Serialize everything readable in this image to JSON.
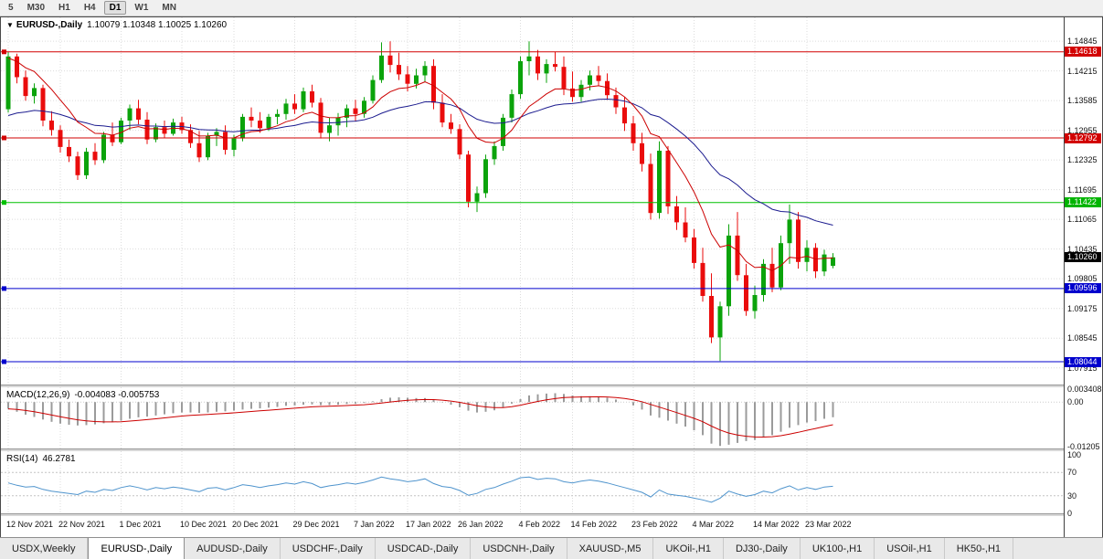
{
  "toolbar": {
    "timeframes": [
      {
        "label": "5",
        "active": false
      },
      {
        "label": "M30",
        "active": false
      },
      {
        "label": "H1",
        "active": false
      },
      {
        "label": "H4",
        "active": false
      },
      {
        "label": "D1",
        "active": true
      },
      {
        "label": "W1",
        "active": false
      },
      {
        "label": "MN",
        "active": false
      }
    ]
  },
  "chart": {
    "marker": "▼",
    "symbol_title": "EURUSD-,Daily",
    "ohlc_text": "1.10079 1.10348 1.10025 1.10260",
    "macd_label": "MACD(12,26,9)",
    "macd_values": "-0.004083 -0.005753",
    "rsi_label": "RSI(14)",
    "rsi_value": "46.2781"
  },
  "tabs": [
    {
      "label": "USDX,Weekly",
      "active": false
    },
    {
      "label": "EURUSD-,Daily",
      "active": true
    },
    {
      "label": "AUDUSD-,Daily",
      "active": false
    },
    {
      "label": "USDCHF-,Daily",
      "active": false
    },
    {
      "label": "USDCAD-,Daily",
      "active": false
    },
    {
      "label": "USDCNH-,Daily",
      "active": false
    },
    {
      "label": "XAUUSD-,M5",
      "active": false
    },
    {
      "label": "UKOil-,H1",
      "active": false
    },
    {
      "label": "DJ30-,Daily",
      "active": false
    },
    {
      "label": "UK100-,H1",
      "active": false
    },
    {
      "label": "USOil-,H1",
      "active": false
    },
    {
      "label": "HK50-,H1",
      "active": false
    }
  ],
  "chart_data": {
    "type": "candlestick",
    "symbol": "EURUSD-",
    "timeframe": "Daily",
    "current_bar": {
      "open": 1.10079,
      "high": 1.10348,
      "low": 1.10025,
      "close": 1.1026
    },
    "price_range": [
      1.0756,
      1.1535
    ],
    "price_axis_ticks": [
      1.14845,
      1.14215,
      1.13585,
      1.12955,
      1.12325,
      1.11695,
      1.11065,
      1.10435,
      1.09805,
      1.09175,
      1.08545,
      1.07915
    ],
    "hlines": [
      {
        "price": 1.14618,
        "color": "#d20000"
      },
      {
        "price": 1.12792,
        "color": "#d20000"
      },
      {
        "price": 1.11422,
        "color": "#00c000"
      },
      {
        "price": 1.09596,
        "color": "#0000cd"
      },
      {
        "price": 1.08044,
        "color": "#0000cd"
      }
    ],
    "badges": [
      {
        "price": 1.14618,
        "color": "#d20000"
      },
      {
        "price": 1.12792,
        "color": "#d20000"
      },
      {
        "price": 1.11422,
        "color": "#00b400"
      },
      {
        "price": 1.1026,
        "color": "#000000"
      },
      {
        "price": 1.09596,
        "color": "#0000cd"
      },
      {
        "price": 1.08044,
        "color": "#0000cd"
      }
    ],
    "date_ticks": [
      {
        "label": "12 Nov 2021",
        "i": 0
      },
      {
        "label": "22 Nov 2021",
        "i": 6
      },
      {
        "label": "1 Dec 2021",
        "i": 13
      },
      {
        "label": "10 Dec 2021",
        "i": 20
      },
      {
        "label": "20 Dec 2021",
        "i": 26
      },
      {
        "label": "29 Dec 2021",
        "i": 33
      },
      {
        "label": "7 Jan 2022",
        "i": 40
      },
      {
        "label": "17 Jan 2022",
        "i": 46
      },
      {
        "label": "26 Jan 2022",
        "i": 52
      },
      {
        "label": "4 Feb 2022",
        "i": 59
      },
      {
        "label": "14 Feb 2022",
        "i": 65
      },
      {
        "label": "23 Feb 2022",
        "i": 72
      },
      {
        "label": "4 Mar 2022",
        "i": 79
      },
      {
        "label": "14 Mar 2022",
        "i": 86
      },
      {
        "label": "23 Mar 2022",
        "i": 92
      }
    ],
    "candles": [
      [
        1.134,
        1.1462,
        1.1333,
        1.1452
      ],
      [
        1.1452,
        1.1458,
        1.1395,
        1.1408
      ],
      [
        1.1408,
        1.1422,
        1.1358,
        1.1368
      ],
      [
        1.1368,
        1.1395,
        1.1352,
        1.1385
      ],
      [
        1.1385,
        1.1392,
        1.1304,
        1.1316
      ],
      [
        1.1316,
        1.1336,
        1.1284,
        1.1296
      ],
      [
        1.1296,
        1.1306,
        1.1248,
        1.126
      ],
      [
        1.126,
        1.1276,
        1.1228,
        1.124
      ],
      [
        1.124,
        1.125,
        1.119,
        1.12
      ],
      [
        1.12,
        1.1258,
        1.1192,
        1.125
      ],
      [
        1.125,
        1.1268,
        1.1222,
        1.1232
      ],
      [
        1.1232,
        1.1292,
        1.1226,
        1.1286
      ],
      [
        1.1286,
        1.1312,
        1.1262,
        1.127
      ],
      [
        1.127,
        1.1322,
        1.1266,
        1.1316
      ],
      [
        1.1316,
        1.135,
        1.1296,
        1.1342
      ],
      [
        1.1342,
        1.136,
        1.1308,
        1.1318
      ],
      [
        1.1318,
        1.1334,
        1.1266,
        1.1276
      ],
      [
        1.1276,
        1.131,
        1.127,
        1.1302
      ],
      [
        1.1302,
        1.1316,
        1.128,
        1.1288
      ],
      [
        1.1288,
        1.132,
        1.1284,
        1.1312
      ],
      [
        1.1312,
        1.1324,
        1.1288,
        1.1296
      ],
      [
        1.1296,
        1.1308,
        1.1258,
        1.1268
      ],
      [
        1.1268,
        1.1294,
        1.1228,
        1.1238
      ],
      [
        1.1238,
        1.129,
        1.1232,
        1.1284
      ],
      [
        1.1284,
        1.13,
        1.1262,
        1.1292
      ],
      [
        1.1292,
        1.1306,
        1.1244,
        1.1254
      ],
      [
        1.1254,
        1.1286,
        1.124,
        1.1278
      ],
      [
        1.1278,
        1.133,
        1.1272,
        1.1324
      ],
      [
        1.1324,
        1.1344,
        1.1302,
        1.1316
      ],
      [
        1.1316,
        1.1334,
        1.129,
        1.13
      ],
      [
        1.13,
        1.133,
        1.1294,
        1.1324
      ],
      [
        1.1324,
        1.134,
        1.1308,
        1.133
      ],
      [
        1.133,
        1.1362,
        1.1318,
        1.1352
      ],
      [
        1.1352,
        1.1372,
        1.133,
        1.134
      ],
      [
        1.134,
        1.1386,
        1.1334,
        1.1378
      ],
      [
        1.1378,
        1.1392,
        1.1344,
        1.1354
      ],
      [
        1.1354,
        1.1364,
        1.1278,
        1.129
      ],
      [
        1.129,
        1.1322,
        1.1272,
        1.1306
      ],
      [
        1.1306,
        1.1332,
        1.1284,
        1.1322
      ],
      [
        1.1322,
        1.135,
        1.1302,
        1.1342
      ],
      [
        1.1342,
        1.136,
        1.1314,
        1.133
      ],
      [
        1.133,
        1.1366,
        1.1322,
        1.1358
      ],
      [
        1.1358,
        1.1412,
        1.1352,
        1.1402
      ],
      [
        1.1402,
        1.1482,
        1.1396,
        1.1454
      ],
      [
        1.1454,
        1.1484,
        1.1418,
        1.1434
      ],
      [
        1.1434,
        1.146,
        1.1402,
        1.1414
      ],
      [
        1.1414,
        1.1432,
        1.1378,
        1.1394
      ],
      [
        1.1394,
        1.1426,
        1.1384,
        1.1412
      ],
      [
        1.1412,
        1.1442,
        1.1398,
        1.1432
      ],
      [
        1.1432,
        1.1446,
        1.134,
        1.1354
      ],
      [
        1.1354,
        1.1372,
        1.1302,
        1.1312
      ],
      [
        1.1312,
        1.133,
        1.1288,
        1.1298
      ],
      [
        1.1298,
        1.1308,
        1.1234,
        1.1244
      ],
      [
        1.1244,
        1.1252,
        1.1132,
        1.1144
      ],
      [
        1.1144,
        1.1176,
        1.1122,
        1.1162
      ],
      [
        1.1162,
        1.1244,
        1.1152,
        1.1234
      ],
      [
        1.1234,
        1.1272,
        1.1222,
        1.1262
      ],
      [
        1.1262,
        1.133,
        1.1252,
        1.1322
      ],
      [
        1.1322,
        1.1382,
        1.1312,
        1.1372
      ],
      [
        1.1372,
        1.1452,
        1.1362,
        1.1442
      ],
      [
        1.1442,
        1.1484,
        1.1412,
        1.1452
      ],
      [
        1.1452,
        1.1466,
        1.1402,
        1.1416
      ],
      [
        1.1416,
        1.1446,
        1.1396,
        1.1436
      ],
      [
        1.1436,
        1.1462,
        1.142,
        1.143
      ],
      [
        1.143,
        1.1452,
        1.137,
        1.1384
      ],
      [
        1.1384,
        1.142,
        1.1356,
        1.1366
      ],
      [
        1.1366,
        1.1402,
        1.1356,
        1.1392
      ],
      [
        1.1392,
        1.1422,
        1.138,
        1.1412
      ],
      [
        1.1412,
        1.1432,
        1.139,
        1.14
      ],
      [
        1.14,
        1.1416,
        1.136,
        1.137
      ],
      [
        1.137,
        1.1386,
        1.133,
        1.1344
      ],
      [
        1.1344,
        1.1366,
        1.1294,
        1.131
      ],
      [
        1.131,
        1.1326,
        1.1252,
        1.1268
      ],
      [
        1.1268,
        1.129,
        1.1208,
        1.1224
      ],
      [
        1.1224,
        1.1246,
        1.1106,
        1.112
      ],
      [
        1.112,
        1.1272,
        1.1108,
        1.1252
      ],
      [
        1.1252,
        1.1262,
        1.1118,
        1.1134
      ],
      [
        1.1134,
        1.1156,
        1.1084,
        1.11
      ],
      [
        1.11,
        1.1132,
        1.1058,
        1.1068
      ],
      [
        1.1068,
        1.1086,
        1.1002,
        1.1014
      ],
      [
        1.1014,
        1.1046,
        1.0932,
        1.0944
      ],
      [
        1.0944,
        1.0992,
        1.0844,
        1.0856
      ],
      [
        1.0856,
        1.0932,
        1.0806,
        1.0922
      ],
      [
        1.0922,
        1.1096,
        1.0902,
        1.1072
      ],
      [
        1.1072,
        1.1122,
        1.0976,
        1.0988
      ],
      [
        1.0988,
        1.1012,
        1.0902,
        1.0912
      ],
      [
        1.0912,
        1.0966,
        1.0896,
        1.0946
      ],
      [
        1.0946,
        1.1022,
        1.0932,
        1.1012
      ],
      [
        1.1012,
        1.1046,
        1.0952,
        1.0962
      ],
      [
        1.0962,
        1.1072,
        1.0956,
        1.1056
      ],
      [
        1.1056,
        1.1138,
        1.1012,
        1.1106
      ],
      [
        1.1106,
        1.1122,
        1.1002,
        1.1016
      ],
      [
        1.1016,
        1.1062,
        1.0996,
        1.1046
      ],
      [
        1.1046,
        1.1056,
        1.0982,
        1.0996
      ],
      [
        1.0996,
        1.1042,
        1.0986,
        1.1032
      ],
      [
        1.10079,
        1.10348,
        1.10025,
        1.1026
      ]
    ],
    "ma_fast": {
      "period": 10,
      "seed": 1.1448
    },
    "ma_slow": {
      "period": 30,
      "seed": 1.1318
    },
    "macd": {
      "range": [
        -0.0125,
        0.004
      ],
      "axis": [
        {
          "label": "0.003408",
          "v": 0.003408
        },
        {
          "label": "0.00",
          "v": 0
        },
        {
          "label": "-0.01205",
          "v": -0.01205
        }
      ],
      "histogram": [
        -0.0018,
        -0.0026,
        -0.0034,
        -0.004,
        -0.0047,
        -0.0053,
        -0.0058,
        -0.0061,
        -0.0063,
        -0.0062,
        -0.006,
        -0.0057,
        -0.0054,
        -0.005,
        -0.0045,
        -0.0041,
        -0.0039,
        -0.0036,
        -0.0033,
        -0.003,
        -0.0028,
        -0.0028,
        -0.0029,
        -0.0028,
        -0.0026,
        -0.0025,
        -0.0023,
        -0.002,
        -0.0018,
        -0.0017,
        -0.0015,
        -0.0013,
        -0.001,
        -0.0009,
        -0.0007,
        -0.0006,
        -0.0008,
        -0.0008,
        -0.0007,
        -0.0005,
        -0.0004,
        -0.0002,
        0.0002,
        0.0008,
        0.0012,
        0.0013,
        0.0012,
        0.0011,
        0.0011,
        0.0006,
        -0.0001,
        -0.0007,
        -0.0014,
        -0.0023,
        -0.0028,
        -0.0026,
        -0.0022,
        -0.0014,
        -0.0004,
        0.0008,
        0.0018,
        0.0021,
        0.0023,
        0.0024,
        0.0022,
        0.0018,
        0.0016,
        0.0016,
        0.0015,
        0.0012,
        0.0007,
        0.0,
        -0.0009,
        -0.002,
        -0.0036,
        -0.0042,
        -0.005,
        -0.0058,
        -0.0066,
        -0.0076,
        -0.0089,
        -0.0112,
        -0.0118,
        -0.0115,
        -0.011,
        -0.0105,
        -0.0102,
        -0.0095,
        -0.0089,
        -0.008,
        -0.0069,
        -0.0062,
        -0.0055,
        -0.0051,
        -0.0045,
        -0.004083
      ]
    },
    "rsi": {
      "levels": [
        70,
        30
      ],
      "axis": [
        {
          "label": "100",
          "v": 100
        },
        {
          "label": "70",
          "v": 70
        },
        {
          "label": "30",
          "v": 30
        },
        {
          "label": "0",
          "v": 0
        }
      ],
      "values": [
        52,
        48,
        45,
        46,
        41,
        38,
        36,
        34,
        32,
        38,
        36,
        41,
        39,
        44,
        47,
        44,
        40,
        44,
        42,
        45,
        43,
        40,
        37,
        43,
        44,
        40,
        44,
        49,
        47,
        44,
        47,
        49,
        52,
        50,
        54,
        51,
        44,
        47,
        49,
        52,
        50,
        53,
        57,
        62,
        59,
        57,
        54,
        56,
        59,
        51,
        46,
        44,
        39,
        31,
        34,
        41,
        44,
        50,
        55,
        61,
        62,
        58,
        60,
        59,
        54,
        52,
        55,
        57,
        55,
        52,
        48,
        44,
        40,
        36,
        28,
        40,
        33,
        31,
        29,
        26,
        23,
        19,
        26,
        38,
        33,
        29,
        32,
        38,
        35,
        42,
        47,
        40,
        44,
        41,
        45,
        46.2781
      ]
    },
    "colors": {
      "up": "#0ba30b",
      "down": "#ea0c0c",
      "ma_fast": "#cc0000",
      "ma_slow": "#1c1c8f",
      "macd_hist": "#9b9b9b",
      "macd_signal": "#cc0000",
      "rsi": "#4f94cd",
      "grid": "#dcdcdc",
      "rsi_level": "#c3c3c3"
    }
  }
}
